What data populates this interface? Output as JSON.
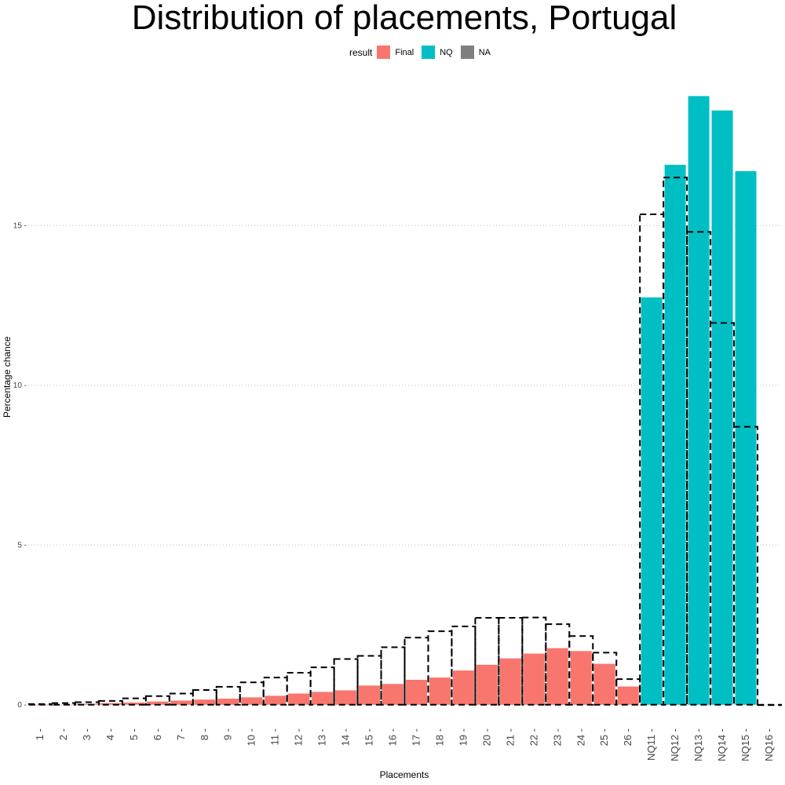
{
  "chart_data": {
    "type": "bar",
    "title": "Distribution of placements, Portugal",
    "xlabel": "Placements",
    "ylabel": "Percentage chance",
    "legend": {
      "title": "result",
      "placement": "top",
      "entries": [
        {
          "name": "Final",
          "color": "#F8766D"
        },
        {
          "name": "NQ",
          "color": "#00BFC4"
        },
        {
          "name": "NA",
          "color": "#7F7F7F"
        }
      ]
    },
    "categories": [
      "1",
      "2",
      "3",
      "4",
      "5",
      "6",
      "7",
      "8",
      "9",
      "10",
      "11",
      "12",
      "13",
      "14",
      "15",
      "16",
      "17",
      "18",
      "19",
      "20",
      "21",
      "22",
      "23",
      "24",
      "25",
      "26",
      "NQ11",
      "NQ12",
      "NQ13",
      "NQ14",
      "NQ15",
      "NQ16"
    ],
    "series": [
      {
        "name": "Final",
        "color": "#F8766D",
        "values": [
          0.0,
          0.0,
          0.03,
          0.05,
          0.07,
          0.1,
          0.13,
          0.16,
          0.19,
          0.23,
          0.28,
          0.35,
          0.4,
          0.45,
          0.6,
          0.65,
          0.78,
          0.85,
          1.07,
          1.25,
          1.45,
          1.6,
          1.77,
          1.68,
          1.28,
          0.57,
          null,
          null,
          null,
          null,
          null,
          null
        ]
      },
      {
        "name": "NQ",
        "color": "#00BFC4",
        "values": [
          null,
          null,
          null,
          null,
          null,
          null,
          null,
          null,
          null,
          null,
          null,
          null,
          null,
          null,
          null,
          null,
          null,
          null,
          null,
          null,
          null,
          null,
          null,
          null,
          null,
          null,
          12.75,
          16.9,
          19.05,
          18.6,
          16.7,
          null
        ]
      }
    ],
    "comparison_outline": {
      "style": "dashed",
      "values": [
        0.02,
        0.05,
        0.08,
        0.12,
        0.2,
        0.27,
        0.35,
        0.46,
        0.56,
        0.7,
        0.85,
        1.0,
        1.17,
        1.43,
        1.53,
        1.8,
        2.1,
        2.3,
        2.45,
        2.72,
        2.72,
        2.73,
        2.52,
        2.15,
        1.63,
        0.8,
        15.35,
        16.5,
        14.8,
        11.95,
        8.7,
        0.0
      ]
    },
    "ylim": [
      -0.4,
      19.6
    ],
    "yticks": [
      0,
      5,
      10,
      15
    ],
    "grid": "horizontal dotted"
  }
}
